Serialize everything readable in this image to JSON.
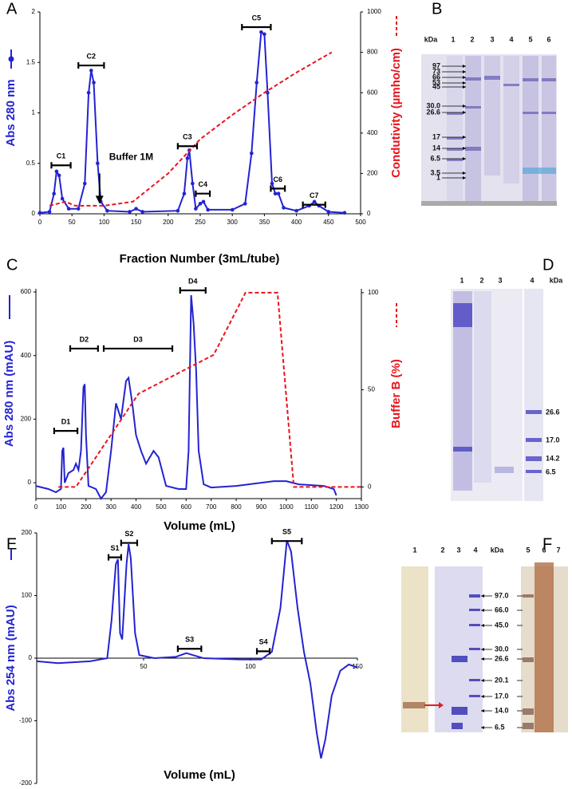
{
  "chart_data": [
    {
      "type": "line",
      "panel": "A",
      "xlabel": "Fraction Number (3mL/tube)",
      "ylabel": "Abs 280 nm",
      "y2label": "Condutivity (µmho/cm)",
      "xlim": [
        0,
        500
      ],
      "xticks": [
        0,
        50,
        100,
        150,
        200,
        250,
        300,
        350,
        400,
        450,
        500
      ],
      "ylim": [
        0,
        2
      ],
      "yticks": [
        0,
        0.5,
        1,
        1.5,
        2
      ],
      "y2lim": [
        0,
        1000
      ],
      "y2ticks": [
        0,
        200,
        400,
        600,
        800,
        1000
      ],
      "series": [
        {
          "color": "#2323d2",
          "marker": "circle",
          "x": [
            0,
            15,
            22,
            26,
            30,
            35,
            45,
            60,
            70,
            76,
            80,
            84,
            90,
            95,
            105,
            140,
            150,
            160,
            215,
            225,
            230,
            233,
            238,
            243,
            250,
            255,
            262,
            300,
            320,
            330,
            338,
            345,
            350,
            355,
            362,
            367,
            372,
            380,
            400,
            420,
            428,
            435,
            450,
            475
          ],
          "values": [
            0.01,
            0.02,
            0.2,
            0.42,
            0.38,
            0.15,
            0.05,
            0.05,
            0.3,
            1.2,
            1.42,
            1.3,
            0.5,
            0.12,
            0.03,
            0.02,
            0.05,
            0.02,
            0.03,
            0.2,
            0.55,
            0.63,
            0.3,
            0.05,
            0.1,
            0.12,
            0.04,
            0.04,
            0.1,
            0.6,
            1.3,
            1.8,
            1.78,
            1.2,
            0.3,
            0.2,
            0.2,
            0.06,
            0.03,
            0.08,
            0.12,
            0.08,
            0.02,
            0.01
          ]
        },
        {
          "color": "#e8141c",
          "linestyle": "dashed",
          "axis": "y2",
          "x": [
            15,
            40,
            55,
            100,
            145,
            200,
            250,
            300,
            350,
            400,
            455
          ],
          "values": [
            40,
            60,
            40,
            40,
            60,
            200,
            370,
            490,
            600,
            700,
            800
          ]
        }
      ],
      "annotations": [
        {
          "label": "C1",
          "x": [
            18,
            48
          ],
          "y": 0.48
        },
        {
          "label": "C2",
          "x": [
            60,
            100
          ],
          "y": 1.47
        },
        {
          "label": "C3",
          "x": [
            215,
            245
          ],
          "y": 0.67
        },
        {
          "label": "C4",
          "x": [
            243,
            265
          ],
          "y": 0.2
        },
        {
          "label": "C5",
          "x": [
            315,
            360
          ],
          "y": 1.85
        },
        {
          "label": "C6",
          "x": [
            360,
            382
          ],
          "y": 0.25
        },
        {
          "label": "C7",
          "x": [
            410,
            445
          ],
          "y": 0.09
        }
      ],
      "arrow": {
        "label": "Buffer 1M",
        "x": 93,
        "y": [
          0.4,
          0.1
        ]
      }
    },
    {
      "type": "line",
      "panel": "C",
      "xlabel": "Volume (mL)",
      "ylabel": "Abs 280 nm (mAU)",
      "y2label": "Buffer B (%)",
      "xlim": [
        0,
        1300
      ],
      "xticks": [
        0,
        100,
        200,
        300,
        400,
        500,
        600,
        700,
        800,
        900,
        1000,
        1100,
        1200,
        1300
      ],
      "ylim": [
        -50,
        610
      ],
      "yticks": [
        0,
        200,
        400,
        600
      ],
      "y2lim": [
        -6,
        102
      ],
      "y2ticks": [
        0,
        50,
        100
      ],
      "series": [
        {
          "color": "#2323d2",
          "x": [
            0,
            50,
            80,
            100,
            105,
            110,
            115,
            130,
            150,
            160,
            170,
            180,
            190,
            195,
            200,
            210,
            240,
            260,
            280,
            300,
            320,
            340,
            360,
            370,
            385,
            400,
            420,
            440,
            470,
            490,
            520,
            570,
            600,
            610,
            620,
            630,
            640,
            650,
            670,
            700,
            800,
            900,
            950,
            1000,
            1050,
            1150,
            1190,
            1200
          ],
          "values": [
            -10,
            -20,
            -30,
            -20,
            100,
            110,
            0,
            30,
            40,
            60,
            40,
            100,
            300,
            310,
            150,
            -10,
            -20,
            -50,
            -30,
            100,
            250,
            200,
            320,
            330,
            250,
            150,
            100,
            60,
            100,
            80,
            -10,
            -20,
            -20,
            100,
            590,
            500,
            350,
            100,
            -5,
            -15,
            -10,
            0,
            5,
            5,
            -5,
            -10,
            -20,
            -40
          ]
        },
        {
          "color": "#e8141c",
          "linestyle": "dashed",
          "axis": "y2",
          "x": [
            90,
            160,
            410,
            710,
            837,
            965,
            1030,
            1300
          ],
          "values": [
            0,
            0,
            48,
            68,
            100,
            100,
            0,
            0
          ]
        }
      ],
      "annotations": [
        {
          "label": "D1",
          "x": [
            73,
            166
          ],
          "y": 163
        },
        {
          "label": "D2",
          "x": [
            137,
            248
          ],
          "y": 422
        },
        {
          "label": "D3",
          "x": [
            271,
            545
          ],
          "y": 422
        },
        {
          "label": "D4",
          "x": [
            576,
            678
          ],
          "y": 605
        }
      ]
    },
    {
      "type": "line",
      "panel": "E",
      "xlabel": "Volume (mL)",
      "ylabel": "Abs 254 nm (mAU)",
      "xlim": [
        0,
        150
      ],
      "xticks": [
        50,
        100,
        150
      ],
      "ylim": [
        -200,
        200
      ],
      "yticks": [
        -200,
        -100,
        0,
        100,
        200
      ],
      "series": [
        {
          "color": "#2323d2",
          "x": [
            0,
            10,
            25,
            33,
            35,
            37,
            38,
            39,
            40,
            42,
            43,
            44,
            46,
            48,
            55,
            65,
            70,
            73,
            78,
            95,
            105,
            110,
            114,
            117,
            119,
            122,
            125,
            128,
            131,
            133,
            135,
            138,
            142,
            146,
            150
          ],
          "values": [
            -5,
            -8,
            -5,
            0,
            60,
            150,
            158,
            40,
            30,
            150,
            182,
            160,
            40,
            5,
            0,
            2,
            8,
            5,
            0,
            -2,
            -2,
            10,
            80,
            188,
            170,
            80,
            10,
            -40,
            -120,
            -160,
            -130,
            -60,
            -20,
            -10,
            -15
          ]
        }
      ],
      "annotations": [
        {
          "label": "S1",
          "x": [
            33.6,
            39.5
          ],
          "y": 161
        },
        {
          "label": "S2",
          "x": [
            39.5,
            47
          ],
          "y": 184
        },
        {
          "label": "S3",
          "x": [
            66,
            77
          ],
          "y": 15
        },
        {
          "label": "S4",
          "x": [
            103,
            109
          ],
          "y": 11
        },
        {
          "label": "S5",
          "x": [
            110,
            124
          ],
          "y": 187
        }
      ]
    }
  ],
  "gels": [
    {
      "panel": "B",
      "unit": "kDa",
      "lanes": [
        "1",
        "2",
        "3",
        "4",
        "5",
        "6"
      ],
      "markers": [
        "97",
        "73",
        "66",
        "53",
        "45",
        "30.0",
        "26.6",
        "17",
        "14",
        "6.5",
        "3.5",
        "1"
      ]
    },
    {
      "panel": "D",
      "unit": "kDa",
      "lanes": [
        "1",
        "2",
        "3",
        "4"
      ],
      "markers": [
        "26.6",
        "17.0",
        "14.2",
        "6.5"
      ]
    },
    {
      "panel": "F",
      "unit": "kDa",
      "lanes": [
        "1",
        "2",
        "3",
        "4",
        "5",
        "6",
        "7"
      ],
      "markers": [
        "97.0",
        "66.0",
        "45.0",
        "30.0",
        "26.6",
        "20.1",
        "17.0",
        "14.0",
        "6.5"
      ]
    }
  ]
}
